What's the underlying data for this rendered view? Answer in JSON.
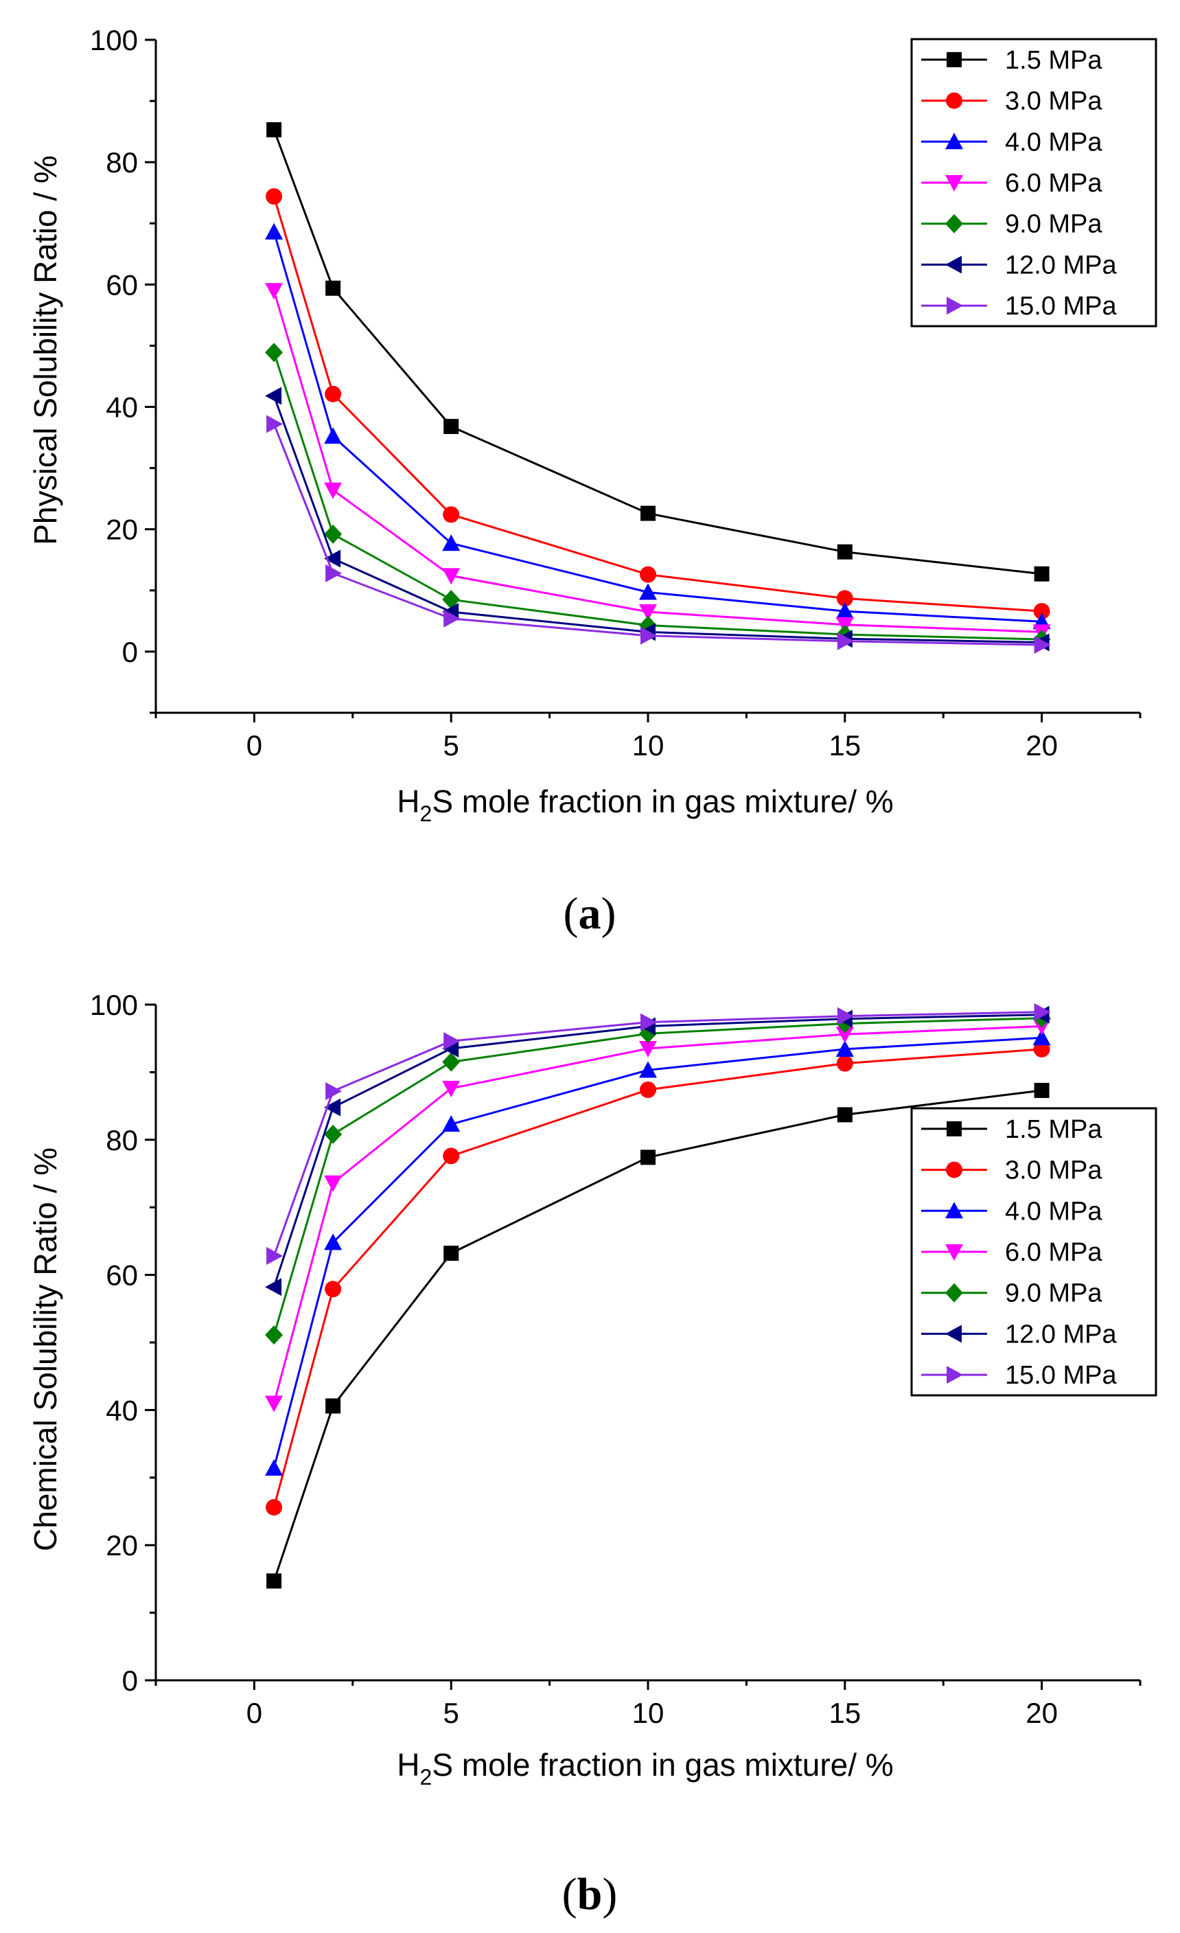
{
  "figure": {
    "colors": {
      "axis": "#000000",
      "background": "#ffffff"
    }
  },
  "chart_data": [
    {
      "type": "line",
      "panel_label": {
        "open": "(",
        "letter": "a",
        "close": ")"
      },
      "title": "",
      "ylabel": "Physical Solubility Ratio / %",
      "xlabel": {
        "prefix": "H",
        "subscript": "2",
        "suffix": "S mole fraction in gas mixture/ %"
      },
      "xlim": [
        -2.5,
        22.5
      ],
      "ylim": [
        -10,
        100
      ],
      "xticks": [
        0,
        5,
        10,
        15,
        20
      ],
      "xtick_labels": [
        "0",
        "5",
        "10",
        "15",
        "20"
      ],
      "yticks": [
        0,
        20,
        40,
        60,
        80,
        100
      ],
      "ytick_labels": [
        "0",
        "20",
        "40",
        "60",
        "80",
        "100"
      ],
      "grid": false,
      "legend_position": "top-right",
      "x": [
        0.5,
        2,
        5,
        10,
        15,
        20
      ],
      "series": [
        {
          "name": "1.5 MPa",
          "color": "#000000",
          "marker": "square",
          "values": [
            85.3,
            59.4,
            36.8,
            22.6,
            16.3,
            12.7
          ]
        },
        {
          "name": "3.0 MPa",
          "color": "#ff0000",
          "marker": "circle",
          "values": [
            74.4,
            42.1,
            22.4,
            12.6,
            8.7,
            6.6
          ]
        },
        {
          "name": "4.0 MPa",
          "color": "#0000ff",
          "marker": "triangle-up",
          "values": [
            68.6,
            35.2,
            17.7,
            9.7,
            6.6,
            4.9
          ]
        },
        {
          "name": "6.0 MPa",
          "color": "#ff00ff",
          "marker": "triangle-down",
          "values": [
            59.0,
            26.4,
            12.4,
            6.5,
            4.4,
            3.2
          ]
        },
        {
          "name": "9.0 MPa",
          "color": "#008000",
          "marker": "diamond",
          "values": [
            48.9,
            19.2,
            8.5,
            4.3,
            2.8,
            2.0
          ]
        },
        {
          "name": "12.0 MPa",
          "color": "#000080",
          "marker": "triangle-left",
          "values": [
            41.8,
            15.2,
            6.5,
            3.2,
            2.1,
            1.5
          ]
        },
        {
          "name": "15.0 MPa",
          "color": "#8a2be2",
          "marker": "triangle-right",
          "values": [
            37.2,
            12.8,
            5.4,
            2.6,
            1.7,
            1.1
          ]
        }
      ]
    },
    {
      "type": "line",
      "panel_label": {
        "open": "(",
        "letter": "b",
        "close": ")"
      },
      "title": "",
      "ylabel": "Chemical Solubility Ratio / %",
      "xlabel": {
        "prefix": "H",
        "subscript": "2",
        "suffix": "S mole fraction in gas mixture/ %"
      },
      "xlim": [
        -2.5,
        22.5
      ],
      "ylim": [
        0,
        100
      ],
      "xticks": [
        0,
        5,
        10,
        15,
        20
      ],
      "xtick_labels": [
        "0",
        "5",
        "10",
        "15",
        "20"
      ],
      "yticks": [
        0,
        20,
        40,
        60,
        80,
        100
      ],
      "ytick_labels": [
        "0",
        "20",
        "40",
        "60",
        "80",
        "100"
      ],
      "grid": false,
      "legend_position": "right",
      "x": [
        0.5,
        2,
        5,
        10,
        15,
        20
      ],
      "series": [
        {
          "name": "1.5 MPa",
          "color": "#000000",
          "marker": "square",
          "values": [
            14.7,
            40.6,
            63.2,
            77.4,
            83.7,
            87.3
          ]
        },
        {
          "name": "3.0 MPa",
          "color": "#ff0000",
          "marker": "circle",
          "values": [
            25.6,
            57.9,
            77.6,
            87.4,
            91.3,
            93.4
          ]
        },
        {
          "name": "4.0 MPa",
          "color": "#0000ff",
          "marker": "triangle-up",
          "values": [
            31.4,
            64.8,
            82.3,
            90.3,
            93.4,
            95.1
          ]
        },
        {
          "name": "6.0 MPa",
          "color": "#ff00ff",
          "marker": "triangle-down",
          "values": [
            41.0,
            73.6,
            87.6,
            93.5,
            95.6,
            96.8
          ]
        },
        {
          "name": "9.0 MPa",
          "color": "#008000",
          "marker": "diamond",
          "values": [
            51.1,
            80.8,
            91.5,
            95.7,
            97.2,
            98.0
          ]
        },
        {
          "name": "12.0 MPa",
          "color": "#000080",
          "marker": "triangle-left",
          "values": [
            58.2,
            84.8,
            93.5,
            96.8,
            97.9,
            98.5
          ]
        },
        {
          "name": "15.0 MPa",
          "color": "#8a2be2",
          "marker": "triangle-right",
          "values": [
            62.8,
            87.2,
            94.6,
            97.4,
            98.3,
            98.9
          ]
        }
      ]
    }
  ]
}
